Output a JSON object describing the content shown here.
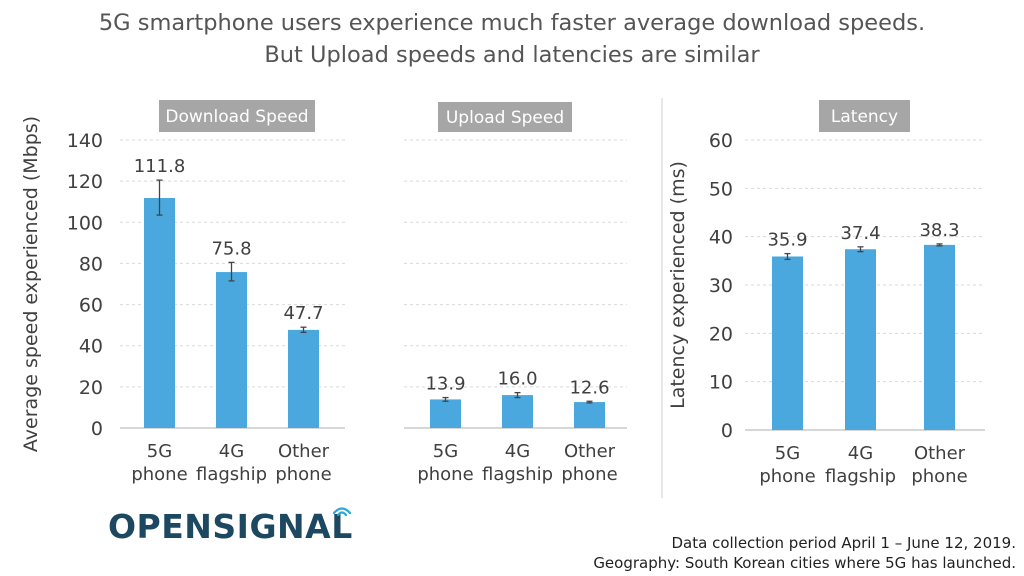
{
  "header": {
    "title_line1": "5G smartphone users experience much faster average download speeds.",
    "title_line2": "But Upload speeds and latencies are similar"
  },
  "logo": {
    "text": "OPENSIGNAL",
    "color": "#1d4862",
    "accent": "#2aa7d9"
  },
  "footer": {
    "line1": "Data collection period April 1 – June 12, 2019.",
    "line2": "Geography: South Korean cities where 5G has launched."
  },
  "colors": {
    "bar": "#4aa8de",
    "panel_label_bg": "#a6a6a6",
    "panel_label_text": "#ffffff",
    "grid": "#d9d9d9",
    "text": "#404040",
    "error_bar": "#444444"
  },
  "chart_data": [
    {
      "type": "bar",
      "title": "Download Speed",
      "ylabel": "Average speed experienced (Mbps)",
      "ylim": [
        0,
        140
      ],
      "yticks": [
        0,
        20,
        40,
        60,
        80,
        100,
        120,
        140
      ],
      "grid": true,
      "categories": [
        [
          "5G",
          "phone"
        ],
        [
          "4G",
          "flagship"
        ],
        [
          "Other",
          "phone"
        ]
      ],
      "values": [
        111.8,
        75.8,
        47.7
      ],
      "value_labels": [
        "111.8",
        "75.8",
        "47.7"
      ],
      "error_low": [
        103.5,
        71.5,
        46.5
      ],
      "error_high": [
        120.5,
        80.5,
        49.0
      ]
    },
    {
      "type": "bar",
      "title": "Upload Speed",
      "ylim": [
        0,
        140
      ],
      "shares_axis_with": 0,
      "categories": [
        [
          "5G",
          "phone"
        ],
        [
          "4G",
          "flagship"
        ],
        [
          "Other",
          "phone"
        ]
      ],
      "values": [
        13.9,
        16.0,
        12.6
      ],
      "value_labels": [
        "13.9",
        "16.0",
        "12.6"
      ],
      "error_low": [
        13.0,
        14.8,
        12.2
      ],
      "error_high": [
        14.8,
        17.2,
        13.0
      ]
    },
    {
      "type": "bar",
      "title": "Latency",
      "ylabel": "Latency experienced (ms)",
      "ylim": [
        0,
        60
      ],
      "yticks": [
        0,
        10,
        20,
        30,
        40,
        50,
        60
      ],
      "grid": true,
      "categories": [
        [
          "5G",
          "phone"
        ],
        [
          "4G",
          "flagship"
        ],
        [
          "Other",
          "phone"
        ]
      ],
      "values": [
        35.9,
        37.4,
        38.3
      ],
      "value_labels": [
        "35.9",
        "37.4",
        "38.3"
      ],
      "error_low": [
        35.3,
        36.9,
        38.1
      ],
      "error_high": [
        36.5,
        37.9,
        38.5
      ]
    }
  ]
}
